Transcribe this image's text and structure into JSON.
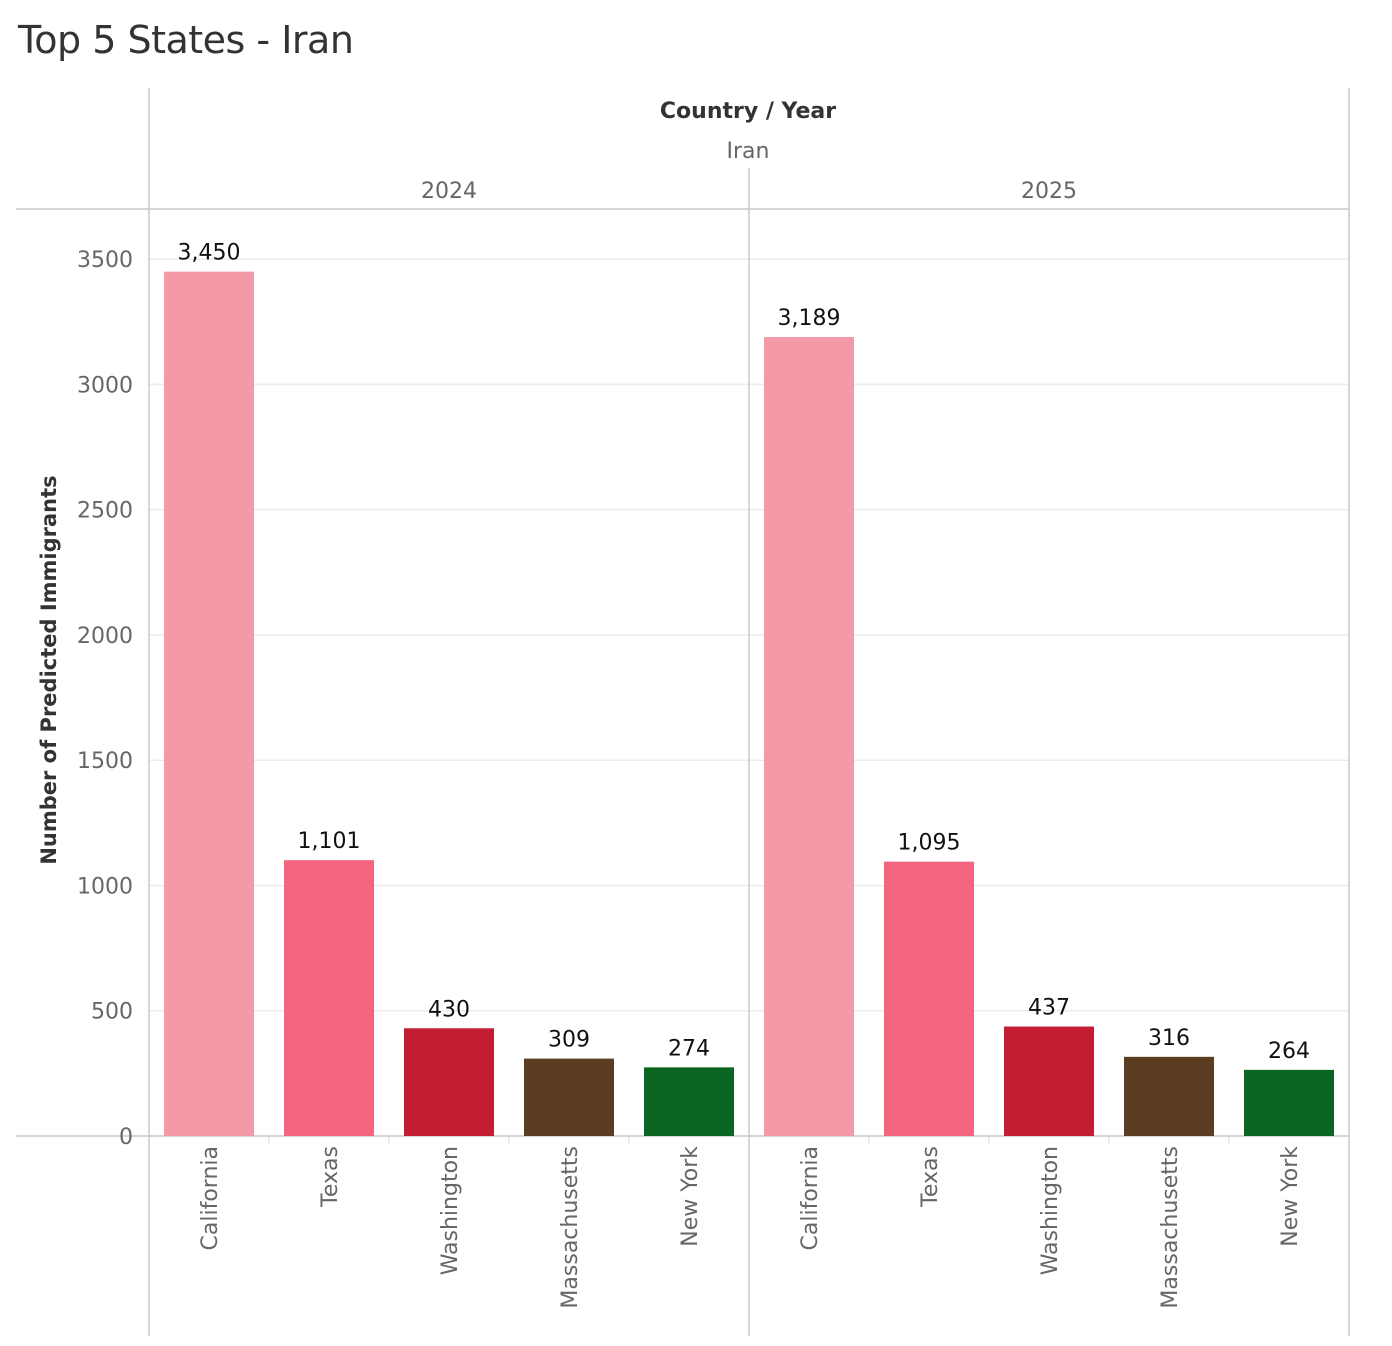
{
  "title": "Top 5 States - Iran",
  "header": {
    "dimension_label": "Country / Year",
    "country": "Iran"
  },
  "chart_data": {
    "type": "bar",
    "title": "Top 5 States - Iran",
    "ylabel": "Number of Predicted Immigrants",
    "xlabel": "",
    "ylim": [
      0,
      3700
    ],
    "yticks": [
      0,
      500,
      1000,
      1500,
      2000,
      2500,
      3000,
      3500
    ],
    "grid": true,
    "colors": {
      "California": "#f499a8",
      "Texas": "#f4667f",
      "Washington": "#c21d33",
      "Massachusetts": "#5c3d22",
      "New York": "#0b6621"
    },
    "panels": [
      {
        "year": "2024",
        "categories": [
          "California",
          "Texas",
          "Washington",
          "Massachusetts",
          "New York"
        ],
        "values": [
          3450,
          1101,
          430,
          309,
          274
        ],
        "labels": [
          "3,450",
          "1,101",
          "430",
          "309",
          "274"
        ]
      },
      {
        "year": "2025",
        "categories": [
          "California",
          "Texas",
          "Washington",
          "Massachusetts",
          "New York"
        ],
        "values": [
          3189,
          1095,
          437,
          316,
          264
        ],
        "labels": [
          "3,189",
          "1,095",
          "437",
          "316",
          "264"
        ]
      }
    ]
  }
}
